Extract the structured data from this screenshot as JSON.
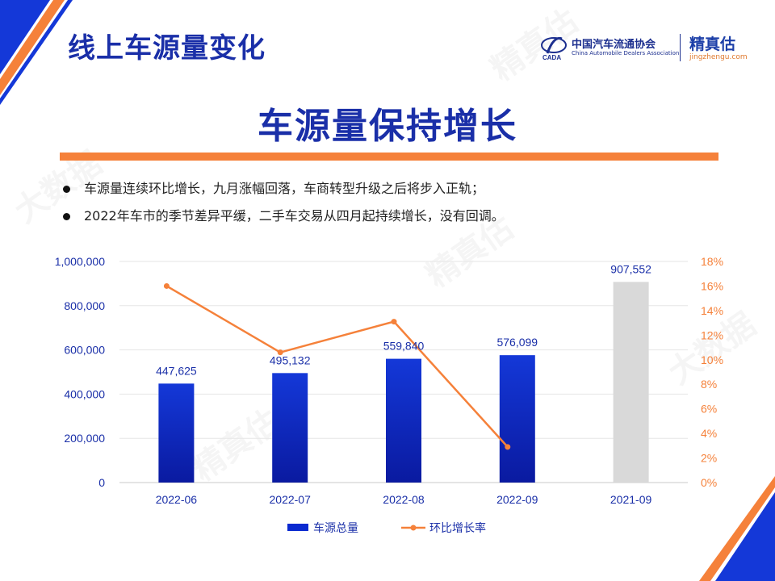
{
  "header": {
    "page_title": "线上车源量变化",
    "headline": "车源量保持增长"
  },
  "logos": {
    "caada_name": "中国汽车流通协会",
    "caada_english": "China Automobile Dealers Association",
    "caada_mark_text": "CADA",
    "jzg_name": "精真估",
    "jzg_url": "jingzhengu.com"
  },
  "bullets": [
    "车源量连续环比增长，九月涨幅回落，车商转型升级之后将步入正轨；",
    "2022年车市的季节差异平缓，二手车交易从四月起持续增长，没有回调。"
  ],
  "watermark": {
    "text": "精真估",
    "text2": "大数据"
  },
  "colors": {
    "brand_blue": "#1a2fa8",
    "bar_top": "#1438d8",
    "bar_bottom": "#0a1aa0",
    "bar_gray": "#d9d9d9",
    "line_orange": "#f5813a",
    "accent_orange": "#f5813a"
  },
  "chart_data": {
    "type": "bar",
    "categories": [
      "2022-06",
      "2022-07",
      "2022-08",
      "2022-09",
      "2021-09"
    ],
    "series": [
      {
        "name": "车源总量",
        "type": "bar",
        "axis": "left",
        "values": [
          447625,
          495132,
          559840,
          576099,
          907552
        ],
        "labels": [
          "447,625",
          "495,132",
          "559,840",
          "576,099",
          "907,552"
        ]
      },
      {
        "name": "环比增长率",
        "type": "line",
        "axis": "right",
        "values": [
          0.16,
          0.106,
          0.131,
          0.029,
          null
        ]
      }
    ],
    "y_left": {
      "range": [
        0,
        1000000
      ],
      "ticks": [
        "0",
        "200,000",
        "400,000",
        "600,000",
        "800,000",
        "1,000,000"
      ]
    },
    "y_right": {
      "range": [
        0,
        0.18
      ],
      "ticks": [
        "0%",
        "2%",
        "4%",
        "6%",
        "8%",
        "10%",
        "12%",
        "14%",
        "16%",
        "18%"
      ]
    },
    "grid": true,
    "legend": "bottom"
  }
}
